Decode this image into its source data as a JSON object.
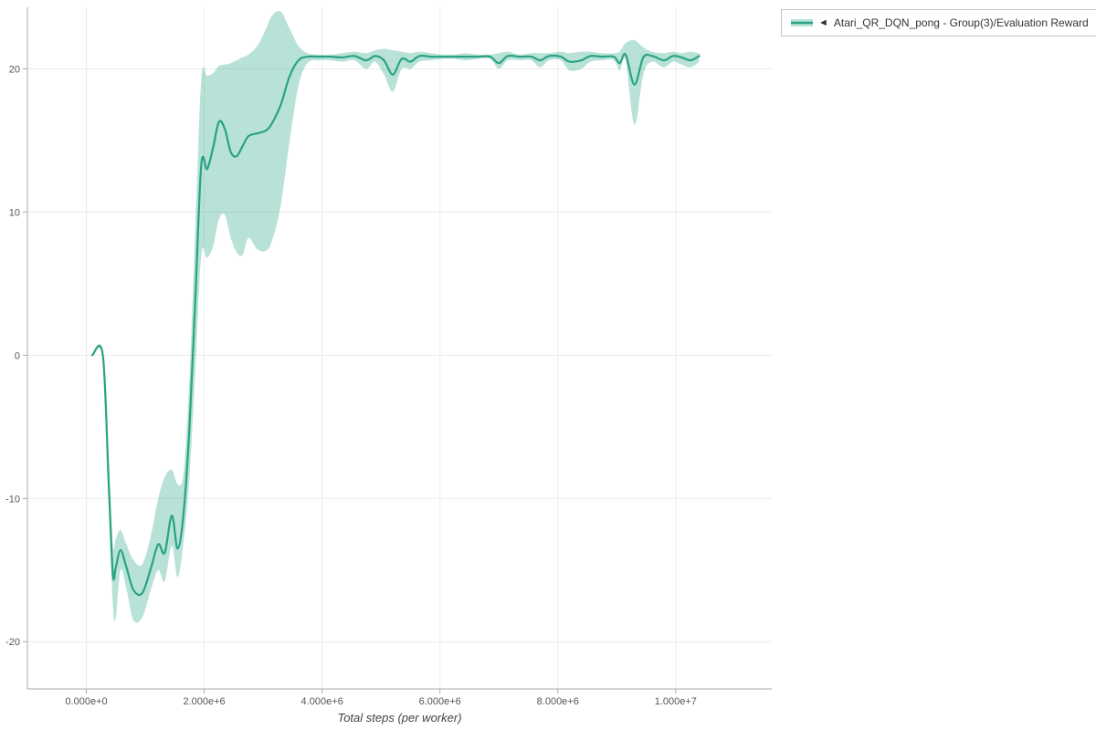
{
  "legend": {
    "toggle_glyph": "◄",
    "label": "Atari_QR_DQN_pong - Group(3)/Evaluation Reward"
  },
  "axes": {
    "x_label": "Total steps (per worker)",
    "x_ticks": [
      {
        "v": 0,
        "label": "0.000e+0"
      },
      {
        "v": 2000000,
        "label": "2.000e+6"
      },
      {
        "v": 4000000,
        "label": "4.000e+6"
      },
      {
        "v": 6000000,
        "label": "6.000e+6"
      },
      {
        "v": 8000000,
        "label": "8.000e+6"
      },
      {
        "v": 10000000,
        "label": "1.000e+7"
      }
    ],
    "y_ticks": [
      {
        "v": -20,
        "label": "-20"
      },
      {
        "v": -10,
        "label": "-10"
      },
      {
        "v": 0,
        "label": "0"
      },
      {
        "v": 10,
        "label": "10"
      },
      {
        "v": 20,
        "label": "20"
      }
    ]
  },
  "colors": {
    "grid": "#ececec",
    "axis": "#aaaaaa",
    "tick_text": "#555555",
    "line": "#29a383",
    "band": "#35ab8c"
  },
  "chart_data": {
    "type": "line",
    "title": "",
    "xlabel": "Total steps (per worker)",
    "ylabel": "",
    "xlim": [
      -1000000,
      11630000
    ],
    "ylim": [
      -23.3,
      24.3
    ],
    "grid": true,
    "legend_position": "top-right",
    "series": [
      {
        "name": "Atari_QR_DQN_pong - Group(3)/Evaluation Reward",
        "color": "#29a383",
        "band_color": "#35ab8c",
        "band_opacity": 0.35,
        "x": [
          100000,
          280000,
          380000,
          450000,
          500000,
          580000,
          680000,
          800000,
          950000,
          1100000,
          1220000,
          1330000,
          1450000,
          1550000,
          1650000,
          1750000,
          1850000,
          1950000,
          2050000,
          2150000,
          2250000,
          2350000,
          2450000,
          2550000,
          2650000,
          2750000,
          2900000,
          3050000,
          3150000,
          3300000,
          3450000,
          3600000,
          3750000,
          3950000,
          4150000,
          4350000,
          4550000,
          4750000,
          4900000,
          5050000,
          5200000,
          5350000,
          5500000,
          5650000,
          5850000,
          6050000,
          6250000,
          6450000,
          6650000,
          6850000,
          7000000,
          7150000,
          7350000,
          7550000,
          7700000,
          7850000,
          8050000,
          8200000,
          8400000,
          8550000,
          8750000,
          8950000,
          9050000,
          9150000,
          9300000,
          9450000,
          9600000,
          9800000,
          9950000,
          10100000,
          10250000,
          10400000
        ],
        "mean": [
          0,
          0,
          -9,
          -15.3,
          -14.8,
          -13.6,
          -14.8,
          -16.4,
          -16.6,
          -14.8,
          -13.2,
          -13.8,
          -11.2,
          -13.5,
          -11,
          -5,
          4,
          13.3,
          13,
          14.5,
          16.3,
          15.8,
          14.2,
          13.9,
          14.6,
          15.3,
          15.5,
          15.7,
          16.2,
          17.5,
          19.5,
          20.6,
          20.85,
          20.85,
          20.85,
          20.8,
          20.9,
          20.6,
          20.9,
          20.6,
          19.6,
          20.7,
          20.5,
          20.9,
          20.85,
          20.85,
          20.85,
          20.85,
          20.85,
          20.85,
          20.4,
          20.9,
          20.85,
          20.85,
          20.6,
          20.9,
          20.85,
          20.5,
          20.6,
          20.9,
          20.85,
          20.85,
          20.4,
          21,
          18.9,
          20.8,
          20.9,
          20.6,
          20.9,
          20.8,
          20.6,
          20.9
        ],
        "lower": [
          0,
          0,
          -10.5,
          -17.5,
          -18.3,
          -15,
          -16.3,
          -18.5,
          -18.3,
          -16.3,
          -15,
          -15.8,
          -13.3,
          -15.5,
          -13,
          -8.5,
          -1,
          7,
          6.8,
          7.6,
          9.5,
          9.8,
          8.2,
          7.2,
          7,
          8.2,
          7.4,
          7.3,
          8,
          10.5,
          15,
          18.8,
          20.4,
          20.6,
          20.6,
          20.5,
          20.6,
          20,
          20.5,
          19.6,
          18.4,
          20,
          20,
          20.5,
          20.6,
          20.7,
          20.7,
          20.6,
          20.7,
          20.7,
          20,
          20.6,
          20.6,
          20.6,
          20.1,
          20.6,
          20.6,
          19.9,
          20,
          20.5,
          20.6,
          20.6,
          19.9,
          20.6,
          16.1,
          19.6,
          20.5,
          20.1,
          20.5,
          20.3,
          20.1,
          20.5
        ],
        "upper": [
          0,
          0,
          -7,
          -13.2,
          -12.8,
          -12.2,
          -13.2,
          -14.3,
          -14.6,
          -12.5,
          -10,
          -8.5,
          -8,
          -9,
          -8.2,
          -1.5,
          9,
          19.3,
          19.5,
          19.7,
          20.2,
          20.3,
          20.4,
          20.6,
          20.8,
          21,
          21.6,
          22.8,
          23.7,
          24,
          22.8,
          21.6,
          21.1,
          21,
          21,
          21.1,
          21.2,
          21.1,
          21.3,
          21.4,
          21.3,
          21.2,
          21.1,
          21.2,
          21.1,
          21,
          21,
          21.1,
          21,
          21,
          21.1,
          21.2,
          21,
          21.1,
          21.1,
          21.1,
          21.2,
          21.1,
          21.2,
          21.2,
          21.1,
          21.1,
          21.2,
          21.8,
          22,
          21.5,
          21.2,
          21.1,
          21.2,
          21.1,
          21.2,
          21.1
        ]
      }
    ]
  }
}
